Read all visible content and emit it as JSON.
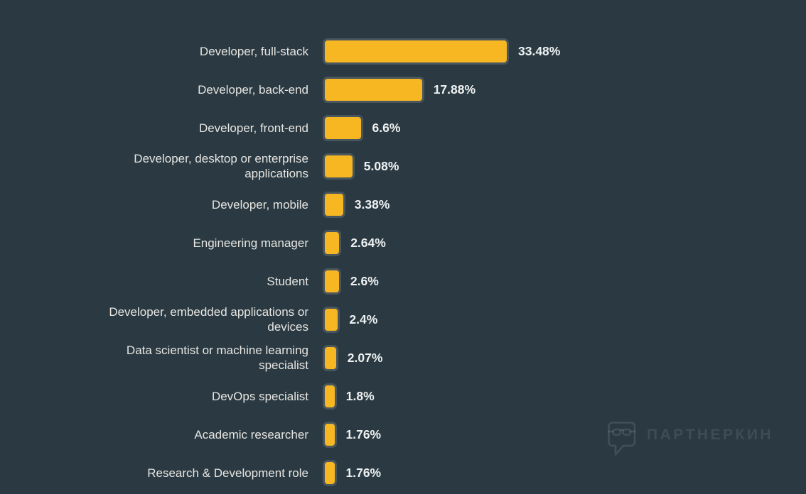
{
  "page": {
    "background_color": "#2b3a42"
  },
  "chart_data": {
    "type": "bar",
    "orientation": "horizontal",
    "title": "",
    "xlabel": "",
    "ylabel": "",
    "grid": false,
    "legend": "none",
    "xlim": [
      0,
      33.48
    ],
    "categories": [
      "Developer, full-stack",
      "Developer, back-end",
      "Developer, front-end",
      "Developer, desktop or enterprise applications",
      "Developer, mobile",
      "Engineering manager",
      "Student",
      "Developer, embedded applications or devices",
      "Data scientist or machine learning specialist",
      "DevOps specialist",
      "Academic researcher",
      "Research & Development role"
    ],
    "values": [
      33.48,
      17.88,
      6.6,
      5.08,
      3.38,
      2.64,
      2.6,
      2.4,
      2.07,
      1.8,
      1.76,
      1.76
    ],
    "value_labels": [
      "33.48%",
      "17.88%",
      "6.6%",
      "5.08%",
      "3.38%",
      "2.64%",
      "2.6%",
      "2.4%",
      "2.07%",
      "1.8%",
      "1.76%",
      "1.76%"
    ],
    "bar_color": "#f7b722",
    "bar_border_color": "#4a565d",
    "label_color": "#e7e5e2",
    "value_label_color": "#eef1f2"
  },
  "watermark": {
    "text": "ПАРТНЕРКИН",
    "logo_icon": "speech-bubble-glasses-logo"
  }
}
